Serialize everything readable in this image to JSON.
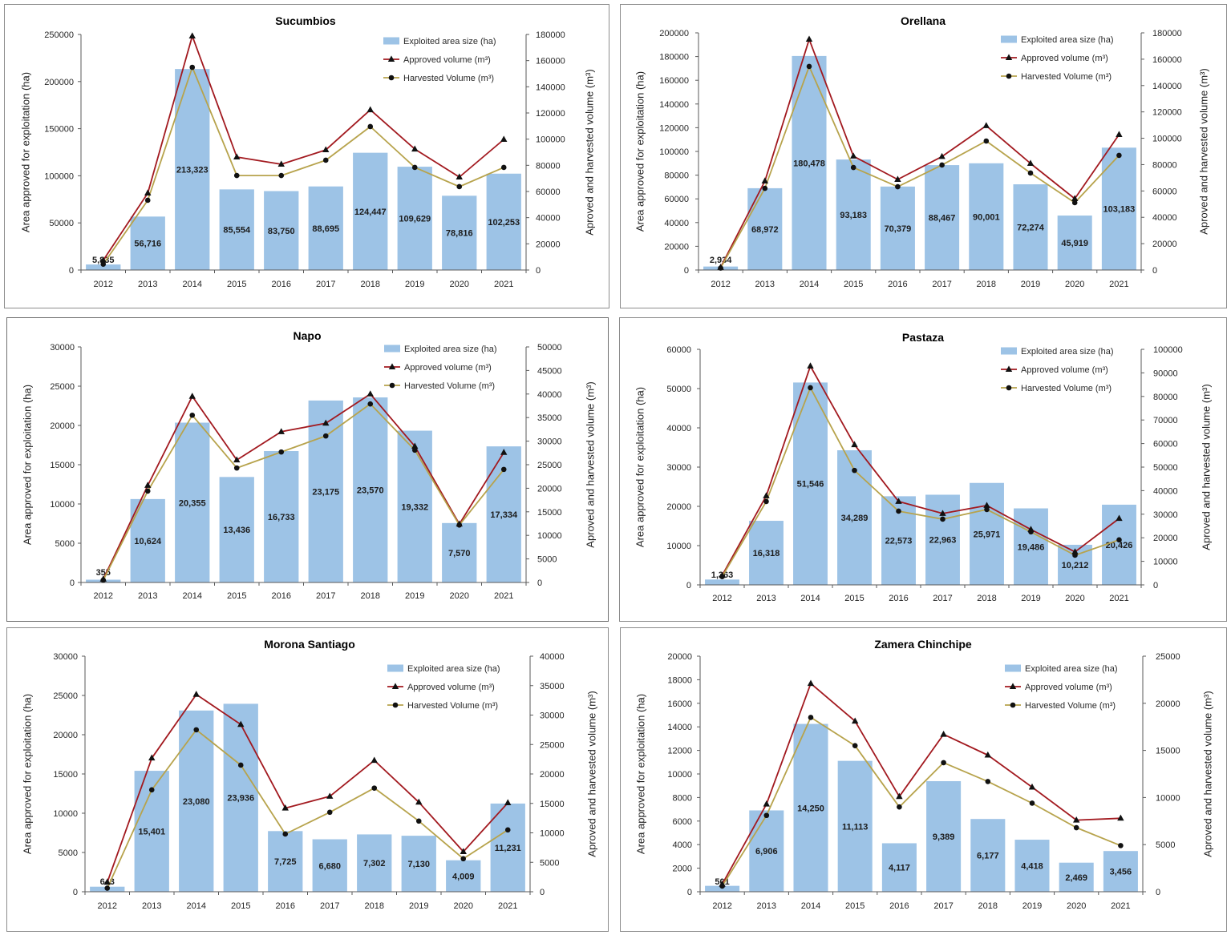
{
  "colors": {
    "bar": "#9dc3e6",
    "approved_line": "#a2191f",
    "harvested_line": "#b7a34c",
    "marker": "#111111",
    "axis": "#5a5a5a"
  },
  "chart_data": [
    {
      "type": "bar",
      "title": "Sucumbios",
      "categories": [
        "2012",
        "2013",
        "2014",
        "2015",
        "2016",
        "2017",
        "2018",
        "2019",
        "2020",
        "2021"
      ],
      "ylabel": "Area approved for exploitation (ha)",
      "y2label": "Aproved and harvested volume (m³)",
      "ylim": [
        0,
        250000
      ],
      "yticks": [
        0,
        50000,
        100000,
        150000,
        200000,
        250000
      ],
      "y2lim": [
        0,
        180000
      ],
      "y2ticks": [
        0,
        20000,
        40000,
        60000,
        80000,
        100000,
        120000,
        140000,
        160000,
        180000
      ],
      "legend": "top-right",
      "grid": false,
      "series": [
        {
          "name": "Exploited area size (ha)",
          "type": "bar",
          "secondary_axis": false,
          "values": [
            5835,
            56716,
            213323,
            85554,
            83750,
            88695,
            124447,
            109629,
            78816,
            102253
          ],
          "labels": [
            "5,835",
            "56,716",
            "213,323",
            "85,554",
            "83,750",
            "88,695",
            "124,447",
            "109,629",
            "78,816",
            "102,253"
          ]
        },
        {
          "name": "Approved volume (m³)",
          "type": "line",
          "secondary_axis": true,
          "values": [
            7500,
            58800,
            178800,
            86300,
            80800,
            91800,
            122400,
            92400,
            71000,
            99800
          ]
        },
        {
          "name": "Harvested Volume (m³)",
          "type": "line",
          "secondary_axis": true,
          "values": [
            4500,
            53300,
            154900,
            72200,
            72200,
            83900,
            109600,
            78400,
            63700,
            78400
          ]
        }
      ]
    },
    {
      "type": "bar",
      "title": "Orellana",
      "categories": [
        "2012",
        "2013",
        "2014",
        "2015",
        "2016",
        "2017",
        "2018",
        "2019",
        "2020",
        "2021"
      ],
      "ylabel": "Area approved for exploitation (ha)",
      "y2label": "Aproved and harvested volume (m³)",
      "ylim": [
        0,
        200000
      ],
      "yticks": [
        0,
        20000,
        40000,
        60000,
        80000,
        100000,
        120000,
        140000,
        160000,
        180000,
        200000
      ],
      "y2lim": [
        0,
        180000
      ],
      "y2ticks": [
        0,
        20000,
        40000,
        60000,
        80000,
        100000,
        120000,
        140000,
        160000,
        180000
      ],
      "legend": "top-right",
      "grid": false,
      "series": [
        {
          "name": "Exploited area size (ha)",
          "type": "bar",
          "secondary_axis": false,
          "values": [
            2934,
            68972,
            180478,
            93183,
            70379,
            88467,
            90001,
            72274,
            45919,
            103183
          ],
          "labels": [
            "2,934",
            "68,972",
            "180,478",
            "93,183",
            "70,379",
            "88,467",
            "90,001",
            "72,274",
            "45,919",
            "103,183"
          ]
        },
        {
          "name": "Approved volume (m³)",
          "type": "line",
          "secondary_axis": true,
          "values": [
            2000,
            67500,
            175100,
            86400,
            68700,
            86100,
            109500,
            80900,
            54100,
            102800
          ]
        },
        {
          "name": "Harvested Volume (m³)",
          "type": "line",
          "secondary_axis": true,
          "values": [
            1500,
            62000,
            154500,
            77800,
            63200,
            79700,
            97900,
            73600,
            51100,
            87000
          ]
        }
      ]
    },
    {
      "type": "bar",
      "title": "Napo",
      "categories": [
        "2012",
        "2013",
        "2014",
        "2015",
        "2016",
        "2017",
        "2018",
        "2019",
        "2020",
        "2021"
      ],
      "ylabel": "Area approved for exploitation (ha)",
      "y2label": "Aproved and harvested volume (m³)",
      "ylim": [
        0,
        30000
      ],
      "yticks": [
        0,
        5000,
        10000,
        15000,
        20000,
        25000,
        30000
      ],
      "y2lim": [
        0,
        50000
      ],
      "y2ticks": [
        0,
        5000,
        10000,
        15000,
        20000,
        25000,
        30000,
        35000,
        40000,
        45000,
        50000
      ],
      "legend": "top-right",
      "grid": false,
      "series": [
        {
          "name": "Exploited area size (ha)",
          "type": "bar",
          "secondary_axis": false,
          "values": [
            355,
            10624,
            20355,
            13436,
            16733,
            23175,
            23570,
            19332,
            7570,
            17334
          ],
          "labels": [
            "355",
            "10,624",
            "20,355",
            "13,436",
            "16,733",
            "23,175",
            "23,570",
            "19,332",
            "7,570",
            "17,334"
          ]
        },
        {
          "name": "Approved volume (m³)",
          "type": "line",
          "secondary_axis": true,
          "values": [
            700,
            20600,
            39500,
            26000,
            32000,
            33800,
            40000,
            28900,
            12400,
            27600
          ]
        },
        {
          "name": "Harvested Volume (m³)",
          "type": "line",
          "secondary_axis": true,
          "values": [
            500,
            19400,
            35500,
            24300,
            27700,
            31100,
            37900,
            28100,
            12200,
            24000
          ]
        }
      ]
    },
    {
      "type": "bar",
      "title": "Pastaza",
      "categories": [
        "2012",
        "2013",
        "2014",
        "2015",
        "2016",
        "2017",
        "2018",
        "2019",
        "2020",
        "2021"
      ],
      "ylabel": "Area approved for exploitation (ha)",
      "y2label": "Aproved and harvested volume (m³)",
      "ylim": [
        0,
        60000
      ],
      "yticks": [
        0,
        10000,
        20000,
        30000,
        40000,
        50000,
        60000
      ],
      "y2lim": [
        0,
        100000
      ],
      "y2ticks": [
        0,
        10000,
        20000,
        30000,
        40000,
        50000,
        60000,
        70000,
        80000,
        90000,
        100000
      ],
      "legend": "top-right",
      "grid": false,
      "series": [
        {
          "name": "Exploited area size (ha)",
          "type": "bar",
          "secondary_axis": false,
          "values": [
            1363,
            16318,
            51546,
            34289,
            22573,
            22963,
            25971,
            19486,
            10212,
            20426
          ],
          "labels": [
            "1,363",
            "16,318",
            "51,546",
            "34,289",
            "22,573",
            "22,963",
            "25,971",
            "19,486",
            "10,212",
            "20,426"
          ]
        },
        {
          "name": "Approved volume (m³)",
          "type": "line",
          "secondary_axis": true,
          "values": [
            4000,
            37800,
            92900,
            59500,
            35400,
            30300,
            33700,
            23500,
            14000,
            28200
          ]
        },
        {
          "name": "Harvested Volume (m³)",
          "type": "line",
          "secondary_axis": true,
          "values": [
            3500,
            35400,
            83700,
            48600,
            31300,
            27900,
            32000,
            22500,
            12600,
            19100
          ]
        }
      ]
    },
    {
      "type": "bar",
      "title": "Morona Santiago",
      "categories": [
        "2012",
        "2013",
        "2014",
        "2015",
        "2016",
        "2017",
        "2018",
        "2019",
        "2020",
        "2021"
      ],
      "ylabel": "Area approved for exploitation (ha)",
      "y2label": "Aproved and harvested volume (m³)",
      "ylim": [
        0,
        30000
      ],
      "yticks": [
        0,
        5000,
        10000,
        15000,
        20000,
        25000,
        30000
      ],
      "y2lim": [
        0,
        40000
      ],
      "y2ticks": [
        0,
        5000,
        10000,
        15000,
        20000,
        25000,
        30000,
        35000,
        40000
      ],
      "legend": "top-right",
      "grid": false,
      "series": [
        {
          "name": "Exploited area size (ha)",
          "type": "bar",
          "secondary_axis": false,
          "values": [
            643,
            15401,
            23080,
            23936,
            7725,
            6680,
            7302,
            7130,
            4009,
            11231
          ],
          "labels": [
            "643",
            "15,401",
            "23,080",
            "23,936",
            "7,725",
            "6,680",
            "7,302",
            "7,130",
            "4,009",
            "11,231"
          ]
        },
        {
          "name": "Approved volume (m³)",
          "type": "line",
          "secondary_axis": true,
          "values": [
            1600,
            22700,
            33500,
            28400,
            14200,
            16200,
            22300,
            15200,
            6800,
            15100
          ]
        },
        {
          "name": "Harvested Volume (m³)",
          "type": "line",
          "secondary_axis": true,
          "values": [
            600,
            17300,
            27500,
            21500,
            9800,
            13500,
            17600,
            12000,
            5600,
            10500
          ]
        }
      ]
    },
    {
      "type": "bar",
      "title": "Zamera Chinchipe",
      "categories": [
        "2012",
        "2013",
        "2014",
        "2015",
        "2016",
        "2017",
        "2018",
        "2019",
        "2020",
        "2021"
      ],
      "ylabel": "Area approved for exploitation (ha)",
      "y2label": "Aproved and harvested volume (m³)",
      "ylim": [
        0,
        20000
      ],
      "yticks": [
        0,
        2000,
        4000,
        6000,
        8000,
        10000,
        12000,
        14000,
        16000,
        18000,
        20000
      ],
      "y2lim": [
        0,
        25000
      ],
      "y2ticks": [
        0,
        5000,
        10000,
        15000,
        20000,
        25000
      ],
      "legend": "top-right",
      "grid": false,
      "series": [
        {
          "name": "Exploited area size (ha)",
          "type": "bar",
          "secondary_axis": false,
          "values": [
            501,
            6906,
            14250,
            11113,
            4117,
            9389,
            6177,
            4418,
            2469,
            3456
          ],
          "labels": [
            "501",
            "6,906",
            "14,250",
            "11,113",
            "4,117",
            "9,389",
            "6,177",
            "4,418",
            "2,469",
            "3,456"
          ]
        },
        {
          "name": "Approved volume (m³)",
          "type": "line",
          "secondary_axis": true,
          "values": [
            800,
            9300,
            22100,
            18100,
            10100,
            16700,
            14500,
            11100,
            7600,
            7800
          ]
        },
        {
          "name": "Harvested Volume (m³)",
          "type": "line",
          "secondary_axis": true,
          "values": [
            600,
            8100,
            18500,
            15500,
            9000,
            13700,
            11700,
            9400,
            6800,
            4900
          ]
        }
      ]
    }
  ]
}
